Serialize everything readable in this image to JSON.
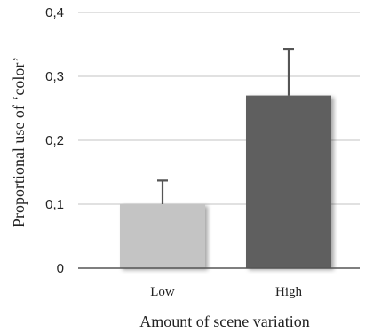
{
  "chart_data": {
    "type": "bar",
    "categories": [
      "Low",
      "High"
    ],
    "values": [
      0.1,
      0.27
    ],
    "error_plus": [
      0.037,
      0.073
    ],
    "colors": [
      "#c4c4c4",
      "#5e5e5e"
    ],
    "xlabel": "Amount of scene variation",
    "ylabel": "Proportional use of ‘color’",
    "ylim": [
      0,
      0.4
    ],
    "yticks": [
      "0",
      "0,1",
      "0,2",
      "0,3",
      "0,4"
    ],
    "yticks_values": [
      0,
      0.1,
      0.2,
      0.3,
      0.4
    ],
    "grid": true
  }
}
